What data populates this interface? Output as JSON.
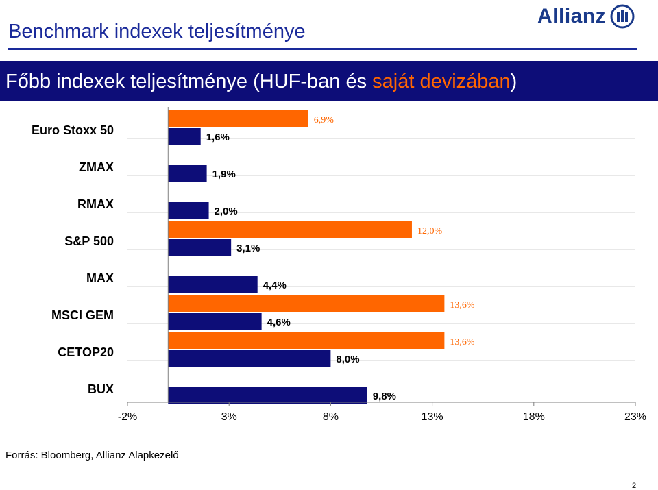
{
  "header": {
    "title": "Benchmark indexek teljesítménye",
    "logo_text": "Allianz"
  },
  "band": {
    "text_main": "Főbb indexek teljesítménye (HUF-ban és ",
    "text_accent": "saját devizában",
    "text_end": ")"
  },
  "chart_data": {
    "type": "bar",
    "orientation": "horizontal",
    "categories": [
      "Euro Stoxx 50",
      "ZMAX",
      "RMAX",
      "S&P 500",
      "MAX",
      "MSCI GEM",
      "CETOP20",
      "BUX"
    ],
    "series": [
      {
        "color": "#ff6600",
        "values": [
          6.9,
          null,
          null,
          12.0,
          null,
          13.6,
          13.6,
          null
        ],
        "labels": [
          "6,9%",
          "",
          "",
          "12,0%",
          "",
          "13,6%",
          "13,6%",
          ""
        ]
      },
      {
        "color": "#0d0d78",
        "values": [
          1.6,
          1.9,
          2.0,
          3.1,
          4.4,
          4.6,
          8.0,
          9.8
        ],
        "labels": [
          "1,6%",
          "1,9%",
          "2,0%",
          "3,1%",
          "4,4%",
          "4,6%",
          "8,0%",
          "9,8%"
        ]
      }
    ],
    "xlim": [
      -2,
      23
    ],
    "xticks": [
      -2,
      3,
      8,
      13,
      18,
      23
    ],
    "xtick_labels": [
      "-2%",
      "3%",
      "8%",
      "13%",
      "18%",
      "23%"
    ],
    "grid": true
  },
  "footer": {
    "source": "Forrás: Bloomberg, Allianz Alapkezelő",
    "page": "2"
  }
}
